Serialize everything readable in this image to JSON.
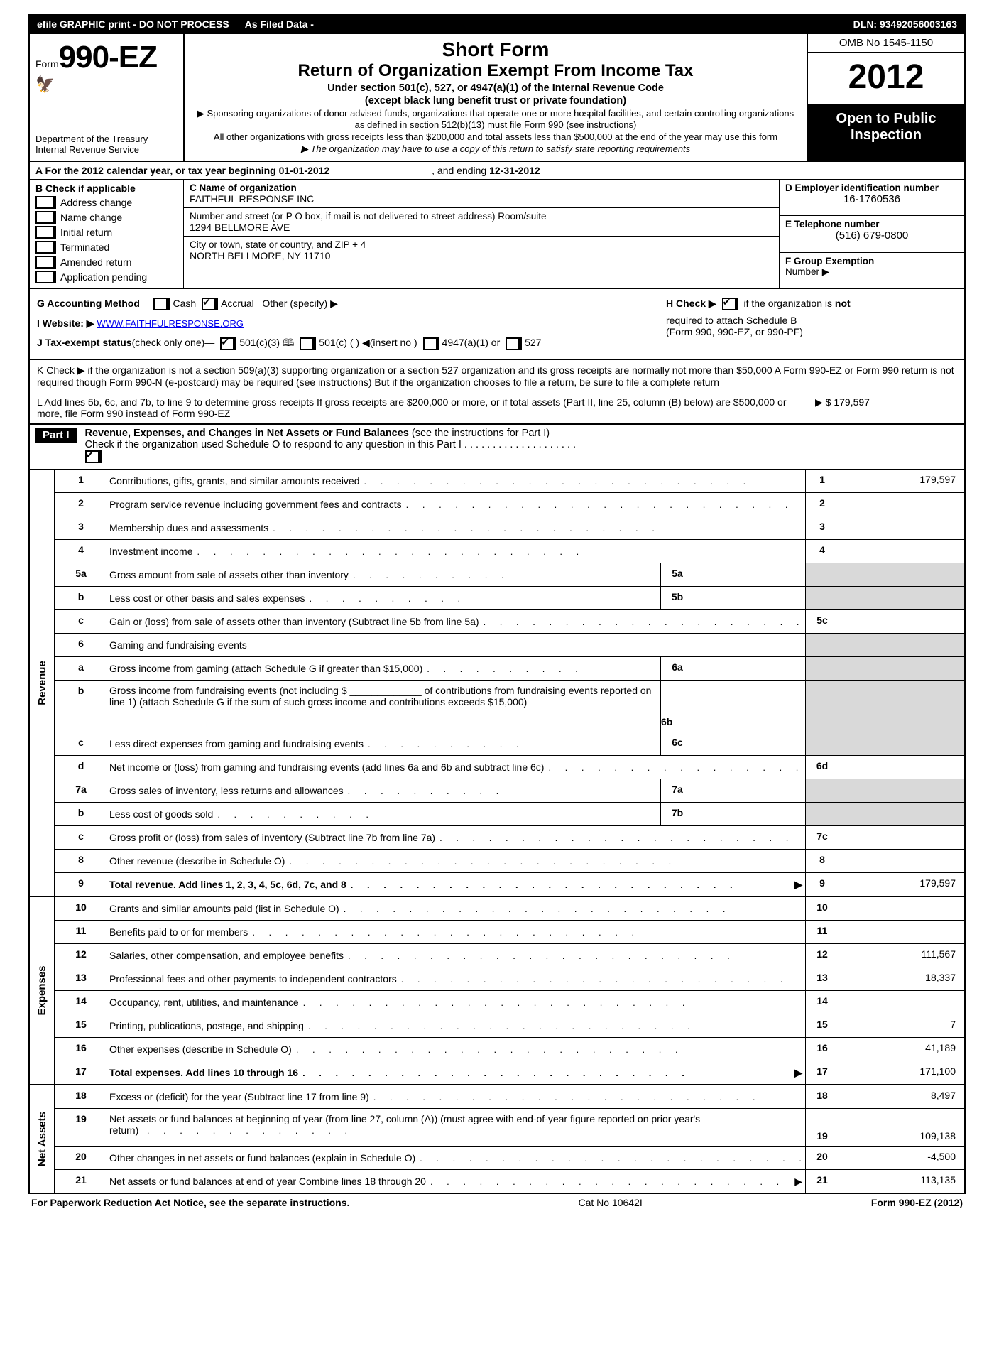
{
  "topbar": {
    "efile": "efile GRAPHIC print - DO NOT PROCESS",
    "asfiled": "As Filed Data -",
    "dln_label": "DLN:",
    "dln": "93492056003163"
  },
  "header": {
    "form_prefix": "Form",
    "form_no": "990-EZ",
    "dept1": "Department of the Treasury",
    "dept2": "Internal Revenue Service",
    "short": "Short Form",
    "title": "Return of Organization Exempt From Income Tax",
    "sub1": "Under section 501(c), 527, or 4947(a)(1) of the Internal Revenue Code",
    "sub2": "(except black lung benefit trust or private foundation)",
    "note_arrow1": "▶ Sponsoring organizations of donor advised funds, organizations that operate one or more hospital facilities, and certain controlling organizations as defined in section 512(b)(13) must file Form 990 (see instructions)",
    "note2": "All other organizations with gross receipts less than $200,000 and total assets less than $500,000 at the end of the year may use this form",
    "note_arrow2": "▶ The organization may have to use a copy of this return to satisfy state reporting requirements",
    "omb": "OMB No  1545-1150",
    "year": "2012",
    "open1": "Open to Public",
    "open2": "Inspection"
  },
  "row_a": {
    "label": "A  For the 2012 calendar year, or tax year beginning",
    "begin": "01-01-2012",
    "mid": ", and ending",
    "end": "12-31-2012"
  },
  "section_b": {
    "header": "B  Check if applicable",
    "checks": [
      "Address change",
      "Name change",
      "Initial return",
      "Terminated",
      "Amended return",
      "Application pending"
    ],
    "c_label": "C Name of organization",
    "c_name": "FAITHFUL RESPONSE INC",
    "street_label": "Number and street (or P  O  box, if mail is not delivered to street address) Room/suite",
    "street": "1294 BELLMORE AVE",
    "city_label": "City or town, state or country, and ZIP + 4",
    "city": "NORTH BELLMORE, NY  11710",
    "d_label": "D Employer identification number",
    "d_val": "16-1760536",
    "e_label": "E Telephone number",
    "e_val": "(516) 679-0800",
    "f_label": "F Group Exemption",
    "f_label2": "Number   ▶"
  },
  "row_g": {
    "left_label": "G Accounting Method",
    "cash": "Cash",
    "accrual": "Accrual",
    "other": "Other (specify) ▶",
    "h_text1": "H  Check ▶",
    "h_text2": "if the organization is",
    "h_not": "not",
    "h_text3": "required to attach Schedule B",
    "h_text4": "(Form 990, 990-EZ, or 990-PF)"
  },
  "row_i": {
    "label": "I Website: ▶",
    "url": "WWW.FAITHFULRESPONSE.ORG"
  },
  "row_j": {
    "label": "J Tax-exempt status",
    "sub": "(check only one)—",
    "o1": "501(c)(3)",
    "o2": "501(c) (   ) ◀(insert no )",
    "o3": "4947(a)(1) or",
    "o4": "527"
  },
  "row_k": {
    "text": "K Check ▶       if the organization is not a section 509(a)(3) supporting organization or a section 527 organization and its gross receipts are normally not more than $50,000  A Form 990-EZ or Form 990 return is not required though Form 990-N (e-postcard) may be required (see instructions)  But if the organization chooses to file a return, be sure to file a complete return"
  },
  "row_l": {
    "text": "L Add lines 5b, 6c, and 7b, to line 9 to determine gross receipts  If gross receipts are $200,000 or more, or if total assets (Part II, line 25, column (B) below) are $500,000 or more, file Form 990 instead of Form 990-EZ",
    "amount_label": "▶ $",
    "amount": "179,597"
  },
  "part1": {
    "badge": "Part I",
    "title": "Revenue, Expenses, and Changes in Net Assets or Fund Balances",
    "paren": "(see the instructions for Part I)",
    "check_line": "Check if the organization used Schedule O to respond to any question in this Part I  .  .  .  .  .  .  .  .  .  .  .  .  .  .  .  .  .  .  .  ."
  },
  "sections": {
    "revenue_label": "Revenue",
    "expenses_label": "Expenses",
    "netassets_label": "Net Assets"
  },
  "lines": {
    "l1": {
      "n": "1",
      "t": "Contributions, gifts, grants, and similar amounts received",
      "rn": "1",
      "rv": "179,597"
    },
    "l2": {
      "n": "2",
      "t": "Program service revenue including government fees and contracts",
      "rn": "2",
      "rv": ""
    },
    "l3": {
      "n": "3",
      "t": "Membership dues and assessments",
      "rn": "3",
      "rv": ""
    },
    "l4": {
      "n": "4",
      "t": "Investment income",
      "rn": "4",
      "rv": ""
    },
    "l5a": {
      "n": "5a",
      "t": "Gross amount from sale of assets other than inventory",
      "sn": "5a"
    },
    "l5b": {
      "n": "b",
      "t": "Less  cost or other basis and sales expenses",
      "sn": "5b"
    },
    "l5c": {
      "n": "c",
      "t": "Gain or (loss) from sale of assets other than inventory (Subtract line 5b from line 5a)",
      "rn": "5c",
      "rv": ""
    },
    "l6": {
      "n": "6",
      "t": "Gaming and fundraising events"
    },
    "l6a": {
      "n": "a",
      "t": "Gross income from gaming (attach Schedule G if greater than $15,000)",
      "sn": "6a"
    },
    "l6b": {
      "n": "b",
      "t": "Gross income from fundraising events (not including $ _____________ of contributions from fundraising events reported on line 1) (attach Schedule G if the sum of such gross income and contributions exceeds $15,000)",
      "sn": "6b"
    },
    "l6c": {
      "n": "c",
      "t": "Less  direct expenses from gaming and fundraising events",
      "sn": "6c"
    },
    "l6d": {
      "n": "d",
      "t": "Net income or (loss) from gaming and fundraising events (add lines 6a and 6b and subtract line 6c)",
      "rn": "6d",
      "rv": ""
    },
    "l7a": {
      "n": "7a",
      "t": "Gross sales of inventory, less returns and allowances",
      "sn": "7a"
    },
    "l7b": {
      "n": "b",
      "t": "Less  cost of goods sold",
      "sn": "7b"
    },
    "l7c": {
      "n": "c",
      "t": "Gross profit or (loss) from sales of inventory (Subtract line 7b from line 7a)",
      "rn": "7c",
      "rv": ""
    },
    "l8": {
      "n": "8",
      "t": "Other revenue (describe in Schedule O)",
      "rn": "8",
      "rv": ""
    },
    "l9": {
      "n": "9",
      "t": "Total revenue. Add lines 1, 2, 3, 4, 5c, 6d, 7c, and 8",
      "rn": "9",
      "rv": "179,597",
      "bold": true,
      "arrow": true
    },
    "l10": {
      "n": "10",
      "t": "Grants and similar amounts paid (list in Schedule O)",
      "rn": "10",
      "rv": ""
    },
    "l11": {
      "n": "11",
      "t": "Benefits paid to or for members",
      "rn": "11",
      "rv": ""
    },
    "l12": {
      "n": "12",
      "t": "Salaries, other compensation, and employee benefits",
      "rn": "12",
      "rv": "111,567"
    },
    "l13": {
      "n": "13",
      "t": "Professional fees and other payments to independent contractors",
      "rn": "13",
      "rv": "18,337"
    },
    "l14": {
      "n": "14",
      "t": "Occupancy, rent, utilities, and maintenance",
      "rn": "14",
      "rv": ""
    },
    "l15": {
      "n": "15",
      "t": "Printing, publications, postage, and shipping",
      "rn": "15",
      "rv": "7"
    },
    "l16": {
      "n": "16",
      "t": "Other expenses (describe in Schedule O)",
      "rn": "16",
      "rv": "41,189"
    },
    "l17": {
      "n": "17",
      "t": "Total expenses. Add lines 10 through 16",
      "rn": "17",
      "rv": "171,100",
      "bold": true,
      "arrow": true
    },
    "l18": {
      "n": "18",
      "t": "Excess or (deficit) for the year (Subtract line 17 from line 9)",
      "rn": "18",
      "rv": "8,497"
    },
    "l19": {
      "n": "19",
      "t": "Net assets or fund balances at beginning of year (from line 27, column (A)) (must agree with end-of-year figure reported on prior year's return)",
      "rn": "19",
      "rv": "109,138"
    },
    "l20": {
      "n": "20",
      "t": "Other changes in net assets or fund balances (explain in Schedule O)",
      "rn": "20",
      "rv": "-4,500"
    },
    "l21": {
      "n": "21",
      "t": "Net assets or fund balances at end of year  Combine lines 18 through 20",
      "rn": "21",
      "rv": "113,135",
      "arrow": true
    }
  },
  "footer": {
    "left": "For Paperwork Reduction Act Notice, see the separate instructions.",
    "center": "Cat  No  10642I",
    "right": "Form 990-EZ (2012)"
  }
}
